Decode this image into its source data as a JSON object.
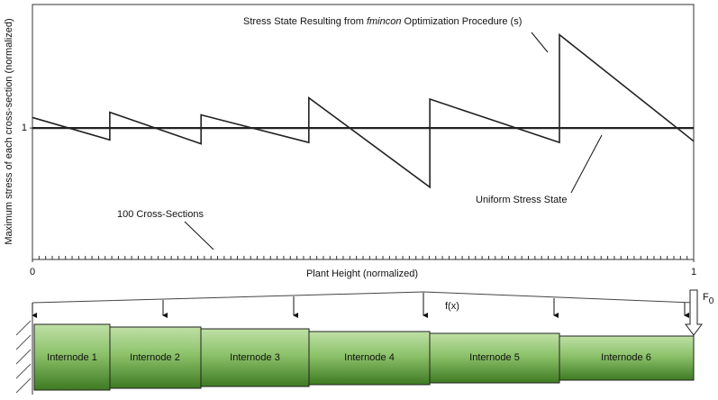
{
  "chart_data": {
    "type": "line",
    "xlabel": "Plant Height (normalized)",
    "ylabel": "Maximum stress of each cross-section (normalized)",
    "xlim": [
      0,
      1
    ],
    "xticks": [
      0,
      1
    ],
    "ylim": [
      0,
      1.94
    ],
    "yticks": [
      1
    ],
    "series": [
      {
        "name": "Stress State Resulting from fmincon Optimization Procedure (s)",
        "color": "#222222",
        "x": [
          0,
          0.117,
          0.117,
          0.255,
          0.255,
          0.418,
          0.418,
          0.601,
          0.601,
          0.797,
          0.797,
          1.0
        ],
        "values": [
          1.08,
          0.91,
          1.12,
          0.88,
          1.1,
          0.89,
          1.23,
          0.55,
          1.22,
          0.89,
          1.71,
          0.9
        ]
      },
      {
        "name": "Uniform Stress State",
        "color": "#222222",
        "x": [
          0,
          1
        ],
        "values": [
          1,
          1
        ]
      }
    ],
    "annotations": {
      "stress_before": "Stress State Resulting from ",
      "stress_italic": "fmincon",
      "stress_after": " Optimization Procedure (s)",
      "uniform": "Uniform Stress State",
      "sections": "100 Cross-Sections"
    }
  },
  "diagram": {
    "internodes": [
      "Internode 1",
      "Internode 2",
      "Internode 3",
      "Internode 4",
      "Internode 5",
      "Internode 6"
    ],
    "load": "f(x)",
    "force": "F",
    "force_subscript": "0"
  }
}
